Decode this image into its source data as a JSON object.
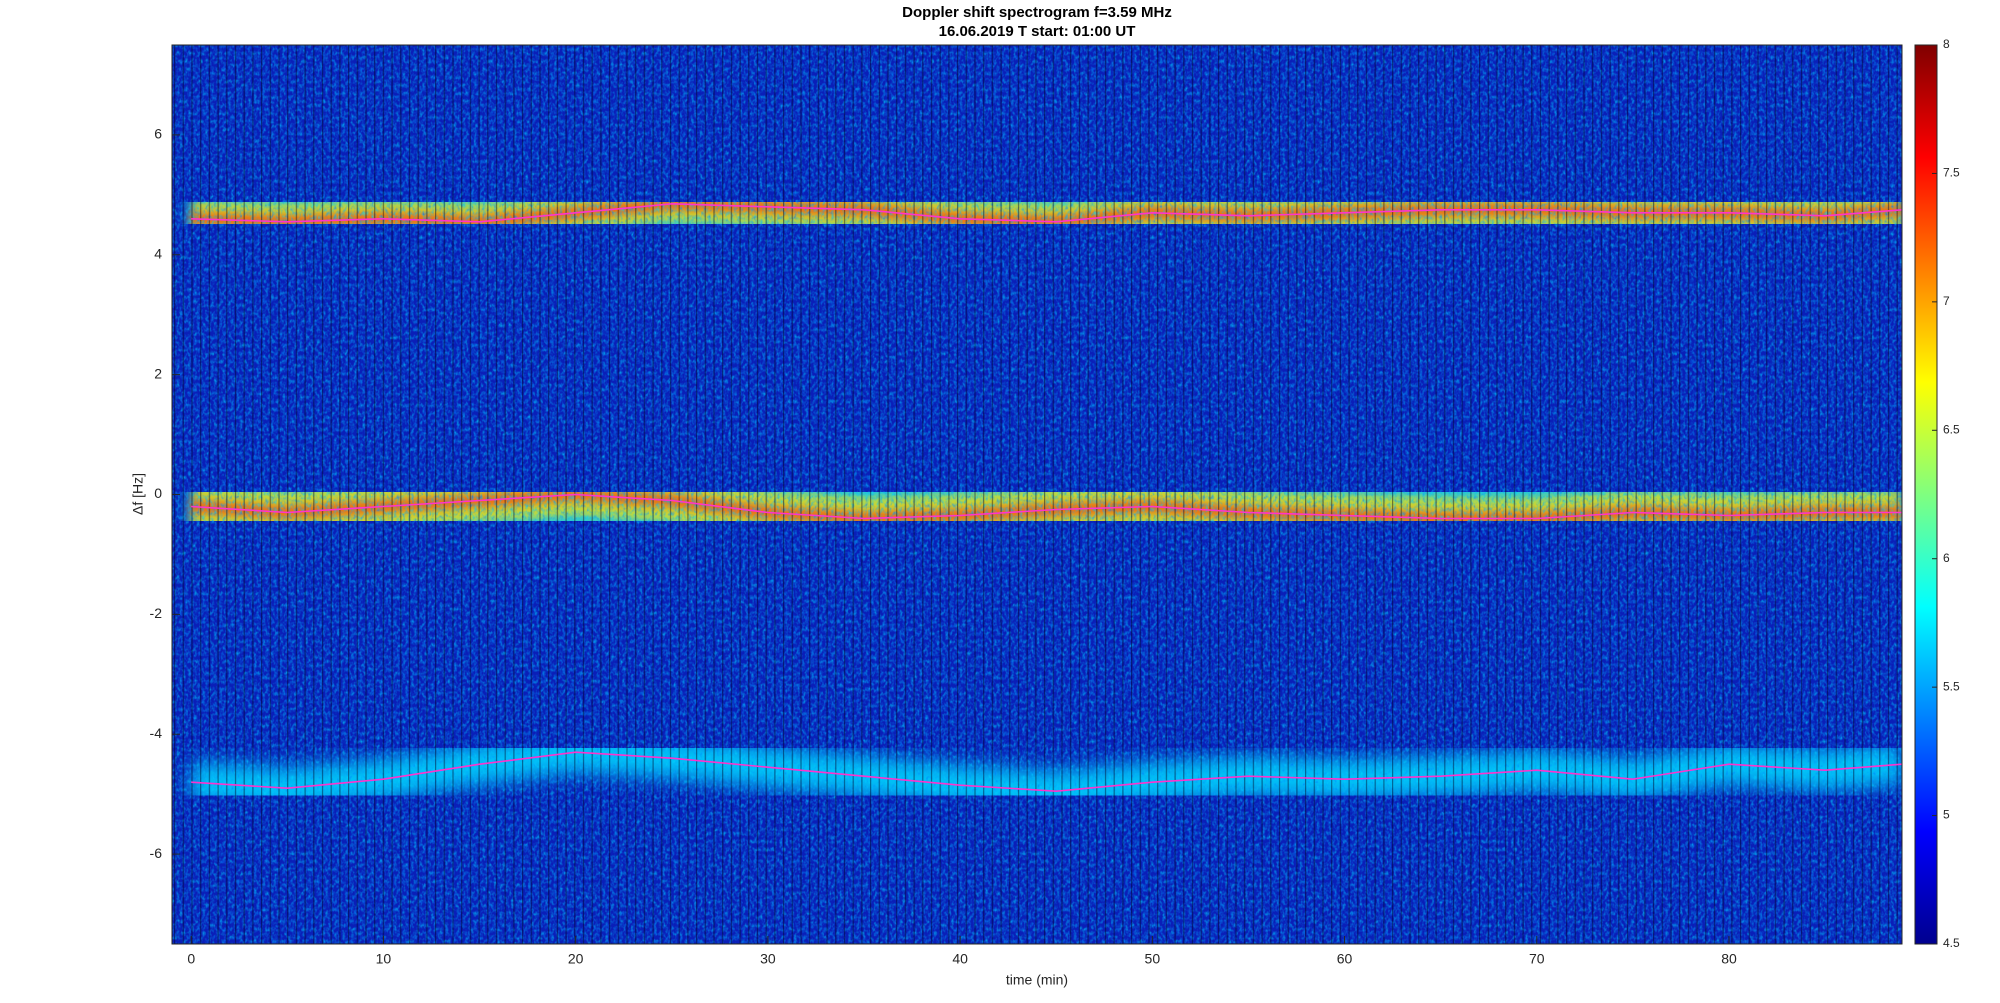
{
  "chart_data": {
    "type": "line",
    "title": "Doppler shift spectrogram f=3.59 MHz",
    "subtitle": "16.06.2019   T start: 01:00 UT",
    "x_label": "time (min)",
    "y_label": "Δf [Hz]",
    "x": [
      0,
      5,
      10,
      15,
      20,
      25,
      30,
      35,
      40,
      45,
      50,
      55,
      60,
      65,
      70,
      75,
      80,
      85,
      89
    ],
    "series": [
      {
        "color": "#ff33cc",
        "values": [
          4.6,
          4.55,
          4.6,
          4.55,
          4.7,
          4.85,
          4.8,
          4.75,
          4.6,
          4.55,
          4.7,
          4.65,
          4.7,
          4.75,
          4.75,
          4.7,
          4.7,
          4.65,
          4.75
        ]
      },
      {
        "color": "#ff33cc",
        "values": [
          -0.2,
          -0.3,
          -0.2,
          -0.1,
          0,
          -0.1,
          -0.3,
          -0.4,
          -0.35,
          -0.25,
          -0.2,
          -0.3,
          -0.35,
          -0.4,
          -0.4,
          -0.3,
          -0.35,
          -0.3,
          -0.3
        ]
      },
      {
        "color": "#ff33cc",
        "values": [
          -4.8,
          -4.9,
          -4.75,
          -4.5,
          -4.3,
          -4.4,
          -4.55,
          -4.7,
          -4.85,
          -4.95,
          -4.8,
          -4.7,
          -4.75,
          -4.7,
          -4.6,
          -4.75,
          -4.5,
          -4.6,
          -4.5
        ]
      }
    ],
    "xlim": [
      -1,
      89
    ],
    "ylim": [
      -7.5,
      7.5
    ],
    "xticks": [
      0,
      10,
      20,
      30,
      40,
      50,
      60,
      70,
      80
    ],
    "yticks": [
      -6,
      -4,
      -2,
      0,
      2,
      4,
      6
    ],
    "colorbar": {
      "colormap": "jet",
      "lim": [
        4.5,
        8
      ],
      "ticks": [
        4.5,
        5,
        5.5,
        6,
        6.5,
        7,
        7.5,
        8
      ]
    }
  }
}
